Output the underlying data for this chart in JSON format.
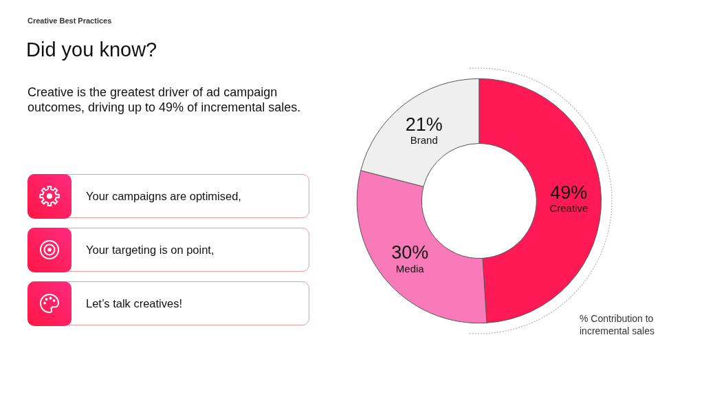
{
  "chart_data": {
    "type": "donut",
    "title": "Did you know?",
    "subtitle": "Creative is the greatest driver of ad campaign outcomes, driving up to 49% of incremental sales.",
    "categories": [
      "Creative",
      "Media",
      "Brand"
    ],
    "values": [
      49,
      30,
      21
    ],
    "value_labels": [
      "49%",
      "30%",
      "21%"
    ],
    "colors": [
      "#ff1a55",
      "#f97ab8",
      "#efefef"
    ],
    "annotations": [
      "Creative Best Practices",
      "Your campaigns are optimised,",
      "Your targeting is on point,",
      "Let’s talk creatives!",
      "% Contribution to incremental sales"
    ]
  }
}
